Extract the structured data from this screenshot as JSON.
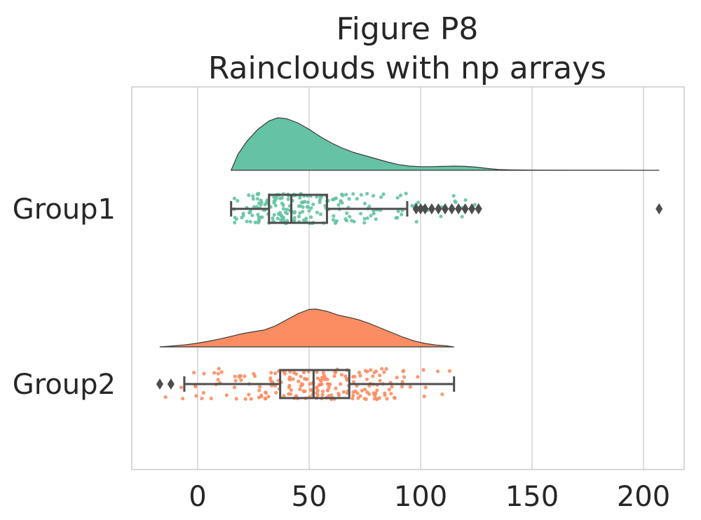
{
  "chart_data": {
    "type": "raincloud",
    "title_line1": "Figure P8",
    "title_line2": "Rainclouds with np arrays",
    "xlabel": "",
    "ylabel": "",
    "xlim": [
      -30,
      210
    ],
    "xticks": [
      0,
      50,
      100,
      150,
      200
    ],
    "xtick_labels": [
      "0",
      "50",
      "100",
      "150",
      "200"
    ],
    "grid": "vertical",
    "groups": [
      {
        "name": "Group1",
        "color": "#66c2a5",
        "range": [
          15,
          207
        ],
        "box": {
          "whisker_low": 15,
          "q1": 32,
          "median": 42,
          "q3": 58,
          "whisker_high": 94
        },
        "outliers": [
          98,
          100,
          102,
          105,
          108,
          111,
          114,
          117,
          120,
          123,
          126,
          207
        ],
        "density": [
          [
            15,
            0.0
          ],
          [
            18,
            0.3
          ],
          [
            22,
            0.55
          ],
          [
            27,
            0.78
          ],
          [
            32,
            0.94
          ],
          [
            36,
            1.0
          ],
          [
            40,
            0.98
          ],
          [
            45,
            0.9
          ],
          [
            50,
            0.78
          ],
          [
            55,
            0.64
          ],
          [
            60,
            0.52
          ],
          [
            65,
            0.42
          ],
          [
            70,
            0.34
          ],
          [
            75,
            0.28
          ],
          [
            80,
            0.22
          ],
          [
            85,
            0.16
          ],
          [
            90,
            0.11
          ],
          [
            95,
            0.08
          ],
          [
            100,
            0.07
          ],
          [
            105,
            0.07
          ],
          [
            110,
            0.075
          ],
          [
            115,
            0.08
          ],
          [
            120,
            0.075
          ],
          [
            125,
            0.06
          ],
          [
            130,
            0.035
          ],
          [
            135,
            0.015
          ],
          [
            140,
            0.008
          ],
          [
            150,
            0.004
          ],
          [
            170,
            0.002
          ],
          [
            190,
            0.001
          ],
          [
            207,
            0.0
          ]
        ],
        "scatter_min": 15,
        "scatter_max": 127
      },
      {
        "name": "Group2",
        "color": "#fc8d62",
        "range": [
          -17,
          115
        ],
        "box": {
          "whisker_low": -6,
          "q1": 37,
          "median": 52,
          "q3": 68,
          "whisker_high": 115
        },
        "outliers": [
          -17,
          -12
        ],
        "density": [
          [
            -17,
            0.0
          ],
          [
            -12,
            0.02
          ],
          [
            -5,
            0.06
          ],
          [
            0,
            0.1
          ],
          [
            5,
            0.15
          ],
          [
            10,
            0.21
          ],
          [
            15,
            0.28
          ],
          [
            20,
            0.35
          ],
          [
            25,
            0.4
          ],
          [
            30,
            0.45
          ],
          [
            35,
            0.56
          ],
          [
            40,
            0.72
          ],
          [
            45,
            0.88
          ],
          [
            50,
            0.99
          ],
          [
            53,
            1.0
          ],
          [
            58,
            0.94
          ],
          [
            63,
            0.84
          ],
          [
            68,
            0.78
          ],
          [
            72,
            0.72
          ],
          [
            77,
            0.62
          ],
          [
            82,
            0.5
          ],
          [
            87,
            0.38
          ],
          [
            92,
            0.26
          ],
          [
            97,
            0.16
          ],
          [
            102,
            0.09
          ],
          [
            107,
            0.05
          ],
          [
            111,
            0.03
          ],
          [
            115,
            0.0
          ]
        ],
        "scatter_min": -15,
        "scatter_max": 115
      }
    ]
  }
}
